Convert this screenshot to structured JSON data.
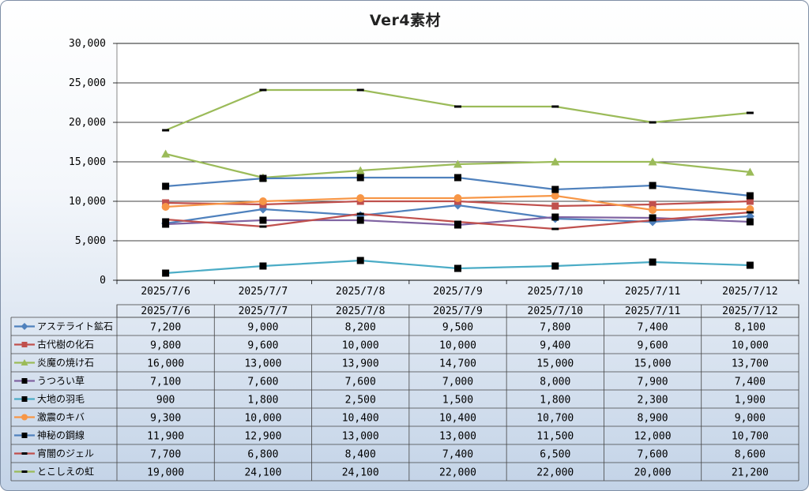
{
  "chart_data": {
    "type": "line",
    "title": "Ver4素材",
    "categories": [
      "2025/7/6",
      "2025/7/7",
      "2025/7/8",
      "2025/7/9",
      "2025/7/10",
      "2025/7/11",
      "2025/7/12"
    ],
    "ylim": [
      0,
      30000
    ],
    "yticks": [
      "0",
      "5,000",
      "10,000",
      "15,000",
      "20,000",
      "25,000",
      "30,000"
    ],
    "grid": true,
    "legend": "data-table",
    "series": [
      {
        "name": "アステライト鉱石",
        "color": "#4f81bd",
        "marker": "diamond",
        "values": [
          7200,
          9000,
          8200,
          9500,
          7800,
          7400,
          8100
        ],
        "labels": [
          "7,200",
          "9,000",
          "8,200",
          "9,500",
          "7,800",
          "7,400",
          "8,100"
        ]
      },
      {
        "name": "古代樹の化石",
        "color": "#c0504d",
        "marker": "square",
        "values": [
          9800,
          9600,
          10000,
          10000,
          9400,
          9600,
          10000
        ],
        "labels": [
          "9,800",
          "9,600",
          "10,000",
          "10,000",
          "9,400",
          "9,600",
          "10,000"
        ]
      },
      {
        "name": "炎魔の焼け石",
        "color": "#9bbb59",
        "marker": "triangle",
        "values": [
          16000,
          13000,
          13900,
          14700,
          15000,
          15000,
          13700
        ],
        "labels": [
          "16,000",
          "13,000",
          "13,900",
          "14,700",
          "15,000",
          "15,000",
          "13,700"
        ]
      },
      {
        "name": "うつろい草",
        "color": "#8064a2",
        "marker": "blacksquare",
        "values": [
          7100,
          7600,
          7600,
          7000,
          8000,
          7900,
          7400
        ],
        "labels": [
          "7,100",
          "7,600",
          "7,600",
          "7,000",
          "8,000",
          "7,900",
          "7,400"
        ]
      },
      {
        "name": "大地の羽毛",
        "color": "#4bacc6",
        "marker": "blacksquare",
        "values": [
          900,
          1800,
          2500,
          1500,
          1800,
          2300,
          1900
        ],
        "labels": [
          "900",
          "1,800",
          "2,500",
          "1,500",
          "1,800",
          "2,300",
          "1,900"
        ]
      },
      {
        "name": "激震のキバ",
        "color": "#f79646",
        "marker": "circle",
        "values": [
          9300,
          10000,
          10400,
          10400,
          10700,
          8900,
          9000
        ],
        "labels": [
          "9,300",
          "10,000",
          "10,400",
          "10,400",
          "10,700",
          "8,900",
          "9,000"
        ]
      },
      {
        "name": "神秘の鋼線",
        "color": "#4f81bd",
        "marker": "blacksquare",
        "values": [
          11900,
          12900,
          13000,
          13000,
          11500,
          12000,
          10700
        ],
        "labels": [
          "11,900",
          "12,900",
          "13,000",
          "13,000",
          "11,500",
          "12,000",
          "10,700"
        ]
      },
      {
        "name": "宵闇のジェル",
        "color": "#c0504d",
        "marker": "dash",
        "values": [
          7700,
          6800,
          8400,
          7400,
          6500,
          7600,
          8600
        ],
        "labels": [
          "7,700",
          "6,800",
          "8,400",
          "7,400",
          "6,500",
          "7,600",
          "8,600"
        ]
      },
      {
        "name": "とこしえの虹",
        "color": "#9bbb59",
        "marker": "dash",
        "values": [
          19000,
          24100,
          24100,
          22000,
          22000,
          20000,
          21200
        ],
        "labels": [
          "19,000",
          "24,100",
          "24,100",
          "22,000",
          "22,000",
          "20,000",
          "21,200"
        ]
      }
    ]
  }
}
